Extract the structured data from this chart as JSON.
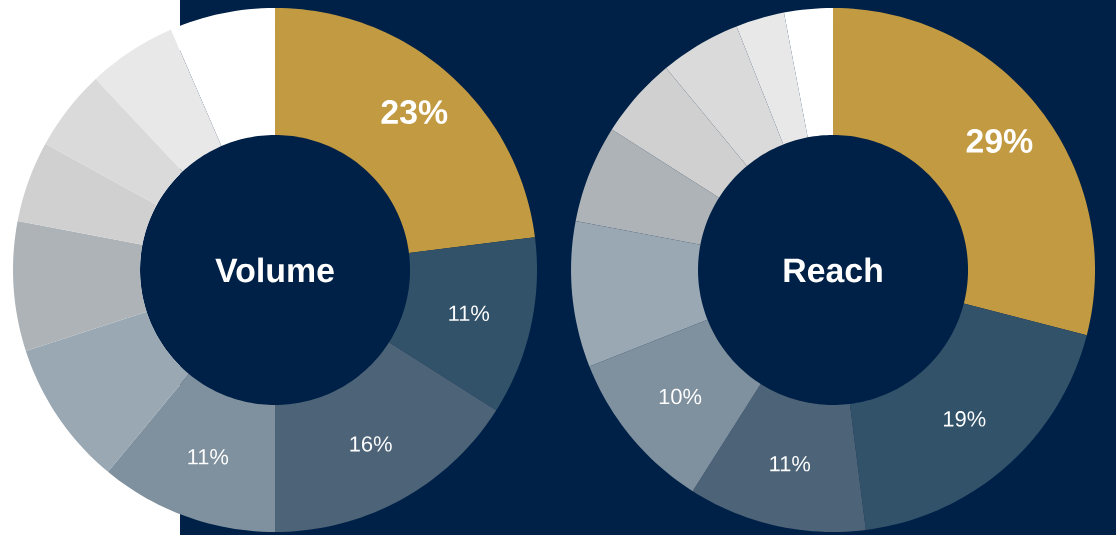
{
  "chart_data": [
    {
      "type": "donut",
      "title": "Volume",
      "categories": [
        null,
        null,
        null,
        null,
        null,
        null,
        null,
        null,
        null,
        null
      ],
      "values": [
        23,
        11,
        16,
        11,
        9,
        8,
        5,
        5,
        5.5,
        6.5
      ],
      "colors": [
        "#c19a42",
        "#32526a",
        "#4c6378",
        "#7f909e",
        "#99a8b3",
        "#aeb3b7",
        "#d0d0d0",
        "#dadada",
        "#e8e8e8",
        "#ffffff"
      ],
      "value_labels": [
        "23%",
        "11%",
        "16%",
        "11%",
        null,
        null,
        null,
        null,
        null,
        null
      ]
    },
    {
      "type": "donut",
      "title": "Reach",
      "categories": [
        null,
        null,
        null,
        null,
        null,
        null,
        null,
        null,
        null,
        null
      ],
      "values": [
        29,
        19,
        11,
        10,
        9,
        6,
        5,
        5,
        3,
        3
      ],
      "colors": [
        "#c19a42",
        "#32526a",
        "#4c6378",
        "#7f909e",
        "#99a8b3",
        "#aeb3b7",
        "#d0d0d0",
        "#dadada",
        "#e8e8e8",
        "#ffffff"
      ],
      "value_labels": [
        "29%",
        "19%",
        "11%",
        "10%",
        null,
        null,
        null,
        null,
        null,
        null
      ]
    }
  ]
}
